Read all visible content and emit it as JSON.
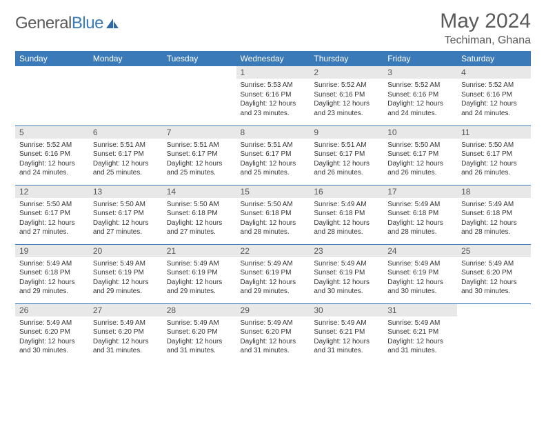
{
  "brand": {
    "part1": "General",
    "part2": "Blue"
  },
  "title": {
    "month": "May 2024",
    "location": "Techiman, Ghana"
  },
  "colors": {
    "header_bg": "#3a7ab8",
    "header_fg": "#ffffff",
    "daynum_bg": "#e8e8e8",
    "rule": "#3a7ab8",
    "text": "#333333",
    "title_fg": "#5a5a5a"
  },
  "weekdays": [
    "Sunday",
    "Monday",
    "Tuesday",
    "Wednesday",
    "Thursday",
    "Friday",
    "Saturday"
  ],
  "weeks": [
    [
      null,
      null,
      null,
      {
        "n": "1",
        "sr": "5:53 AM",
        "ss": "6:16 PM",
        "dl": "12 hours and 23 minutes."
      },
      {
        "n": "2",
        "sr": "5:52 AM",
        "ss": "6:16 PM",
        "dl": "12 hours and 23 minutes."
      },
      {
        "n": "3",
        "sr": "5:52 AM",
        "ss": "6:16 PM",
        "dl": "12 hours and 24 minutes."
      },
      {
        "n": "4",
        "sr": "5:52 AM",
        "ss": "6:16 PM",
        "dl": "12 hours and 24 minutes."
      }
    ],
    [
      {
        "n": "5",
        "sr": "5:52 AM",
        "ss": "6:16 PM",
        "dl": "12 hours and 24 minutes."
      },
      {
        "n": "6",
        "sr": "5:51 AM",
        "ss": "6:17 PM",
        "dl": "12 hours and 25 minutes."
      },
      {
        "n": "7",
        "sr": "5:51 AM",
        "ss": "6:17 PM",
        "dl": "12 hours and 25 minutes."
      },
      {
        "n": "8",
        "sr": "5:51 AM",
        "ss": "6:17 PM",
        "dl": "12 hours and 25 minutes."
      },
      {
        "n": "9",
        "sr": "5:51 AM",
        "ss": "6:17 PM",
        "dl": "12 hours and 26 minutes."
      },
      {
        "n": "10",
        "sr": "5:50 AM",
        "ss": "6:17 PM",
        "dl": "12 hours and 26 minutes."
      },
      {
        "n": "11",
        "sr": "5:50 AM",
        "ss": "6:17 PM",
        "dl": "12 hours and 26 minutes."
      }
    ],
    [
      {
        "n": "12",
        "sr": "5:50 AM",
        "ss": "6:17 PM",
        "dl": "12 hours and 27 minutes."
      },
      {
        "n": "13",
        "sr": "5:50 AM",
        "ss": "6:17 PM",
        "dl": "12 hours and 27 minutes."
      },
      {
        "n": "14",
        "sr": "5:50 AM",
        "ss": "6:18 PM",
        "dl": "12 hours and 27 minutes."
      },
      {
        "n": "15",
        "sr": "5:50 AM",
        "ss": "6:18 PM",
        "dl": "12 hours and 28 minutes."
      },
      {
        "n": "16",
        "sr": "5:49 AM",
        "ss": "6:18 PM",
        "dl": "12 hours and 28 minutes."
      },
      {
        "n": "17",
        "sr": "5:49 AM",
        "ss": "6:18 PM",
        "dl": "12 hours and 28 minutes."
      },
      {
        "n": "18",
        "sr": "5:49 AM",
        "ss": "6:18 PM",
        "dl": "12 hours and 28 minutes."
      }
    ],
    [
      {
        "n": "19",
        "sr": "5:49 AM",
        "ss": "6:18 PM",
        "dl": "12 hours and 29 minutes."
      },
      {
        "n": "20",
        "sr": "5:49 AM",
        "ss": "6:19 PM",
        "dl": "12 hours and 29 minutes."
      },
      {
        "n": "21",
        "sr": "5:49 AM",
        "ss": "6:19 PM",
        "dl": "12 hours and 29 minutes."
      },
      {
        "n": "22",
        "sr": "5:49 AM",
        "ss": "6:19 PM",
        "dl": "12 hours and 29 minutes."
      },
      {
        "n": "23",
        "sr": "5:49 AM",
        "ss": "6:19 PM",
        "dl": "12 hours and 30 minutes."
      },
      {
        "n": "24",
        "sr": "5:49 AM",
        "ss": "6:19 PM",
        "dl": "12 hours and 30 minutes."
      },
      {
        "n": "25",
        "sr": "5:49 AM",
        "ss": "6:20 PM",
        "dl": "12 hours and 30 minutes."
      }
    ],
    [
      {
        "n": "26",
        "sr": "5:49 AM",
        "ss": "6:20 PM",
        "dl": "12 hours and 30 minutes."
      },
      {
        "n": "27",
        "sr": "5:49 AM",
        "ss": "6:20 PM",
        "dl": "12 hours and 31 minutes."
      },
      {
        "n": "28",
        "sr": "5:49 AM",
        "ss": "6:20 PM",
        "dl": "12 hours and 31 minutes."
      },
      {
        "n": "29",
        "sr": "5:49 AM",
        "ss": "6:20 PM",
        "dl": "12 hours and 31 minutes."
      },
      {
        "n": "30",
        "sr": "5:49 AM",
        "ss": "6:21 PM",
        "dl": "12 hours and 31 minutes."
      },
      {
        "n": "31",
        "sr": "5:49 AM",
        "ss": "6:21 PM",
        "dl": "12 hours and 31 minutes."
      },
      null
    ]
  ],
  "labels": {
    "sunrise": "Sunrise:",
    "sunset": "Sunset:",
    "daylight": "Daylight:"
  }
}
